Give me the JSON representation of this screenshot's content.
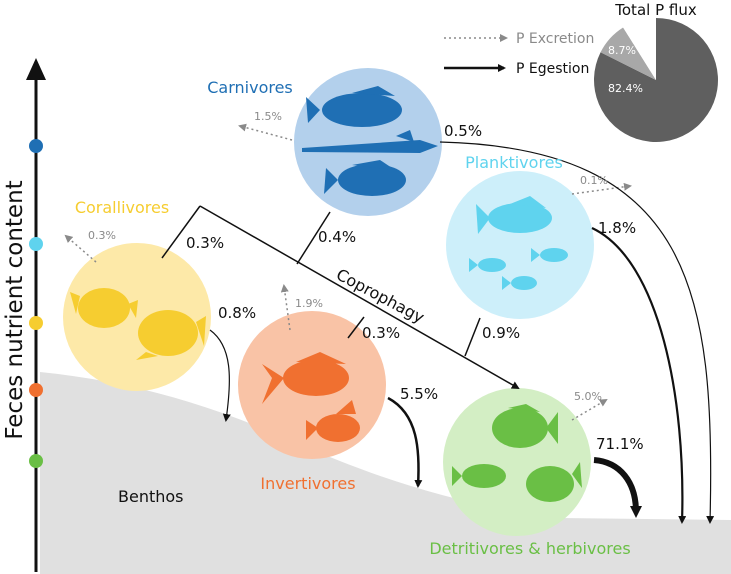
{
  "axis": {
    "label": "Feces nutrient content",
    "dot_colors": [
      "#1f6fb4",
      "#5fd3ee",
      "#f6cd30",
      "#f07030",
      "#6abf45"
    ]
  },
  "benthos_label": "Benthos",
  "coprophagy_label": "Coprophagy",
  "legend": {
    "excretion": "P Excretion",
    "egestion": "P Egestion"
  },
  "pie": {
    "title": "Total P flux",
    "slices": [
      {
        "label": "82.4%",
        "value": 82.4,
        "color": "#5f5f5f"
      },
      {
        "label": "8.7%",
        "value": 8.7,
        "color": "#a8a8a8"
      }
    ]
  },
  "groups": {
    "carnivores": {
      "name": "Carnivores",
      "color": "#1f6fb4",
      "circle_color": "#b3d0ec",
      "excretion": "1.5%",
      "egestion": "0.5%",
      "coprophagy": "0.4%"
    },
    "planktivores": {
      "name": "Planktivores",
      "color": "#5fd3ee",
      "circle_color": "#cdeffa",
      "excretion": "0.1%",
      "egestion": "1.8%",
      "coprophagy": "0.9%"
    },
    "corallivores": {
      "name": "Corallivores",
      "color": "#f6cd30",
      "circle_color": "#fde9a8",
      "excretion": "0.3%",
      "egestion": "0.8%",
      "coprophagy": "0.3%"
    },
    "invertivores": {
      "name": "Invertivores",
      "color": "#f07030",
      "circle_color": "#f9c3a6",
      "excretion": "1.9%",
      "egestion": "5.5%",
      "coprophagy": "0.3%"
    },
    "detritivores": {
      "name": "Detritivores & herbivores",
      "color": "#6abf45",
      "circle_color": "#d3eec4",
      "excretion": "5.0%",
      "egestion": "71.1%"
    }
  }
}
